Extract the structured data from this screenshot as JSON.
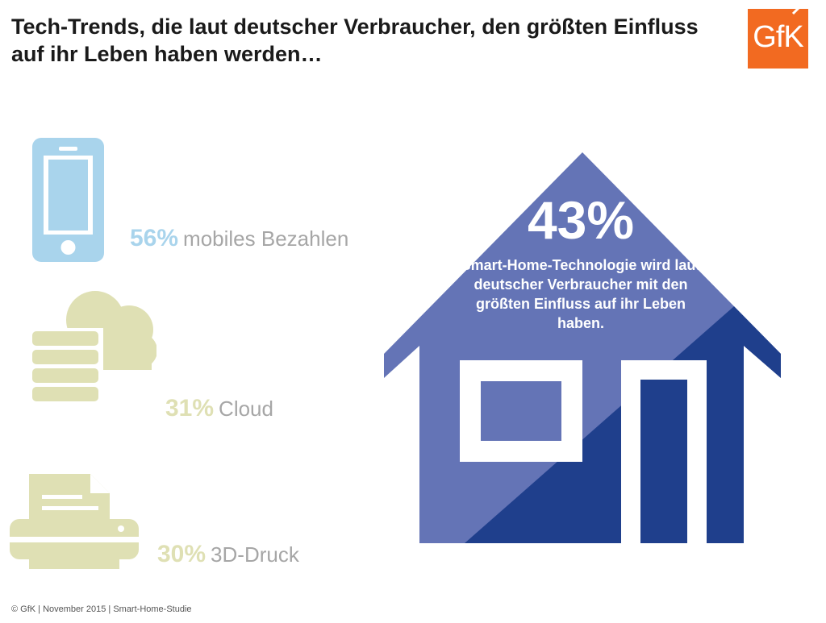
{
  "title": "Tech-Trends, die laut deutscher Verbraucher, den größten Einfluss auf ihr Leben haben werden…",
  "logo": {
    "text": "GfK",
    "color": "#f26a21"
  },
  "stats": [
    {
      "percent": "56%",
      "label": "mobiles Bezahlen",
      "icon": "smartphone-icon",
      "color": "#a9d4ec"
    },
    {
      "percent": "31%",
      "label": "Cloud",
      "icon": "cloud-server-icon",
      "color": "#dfe0b4"
    },
    {
      "percent": "30%",
      "label": "3D-Druck",
      "icon": "printer-icon",
      "color": "#dfe0b4"
    }
  ],
  "house": {
    "percent": "43%",
    "text": "Smart-Home-Technologie wird laut deutscher Verbraucher mit den größten Einfluss auf ihr Leben haben.",
    "color_light": "#6474b6",
    "color_dark": "#1f3f8c"
  },
  "footer": "© GfK | November 2015 | Smart-Home-Studie"
}
